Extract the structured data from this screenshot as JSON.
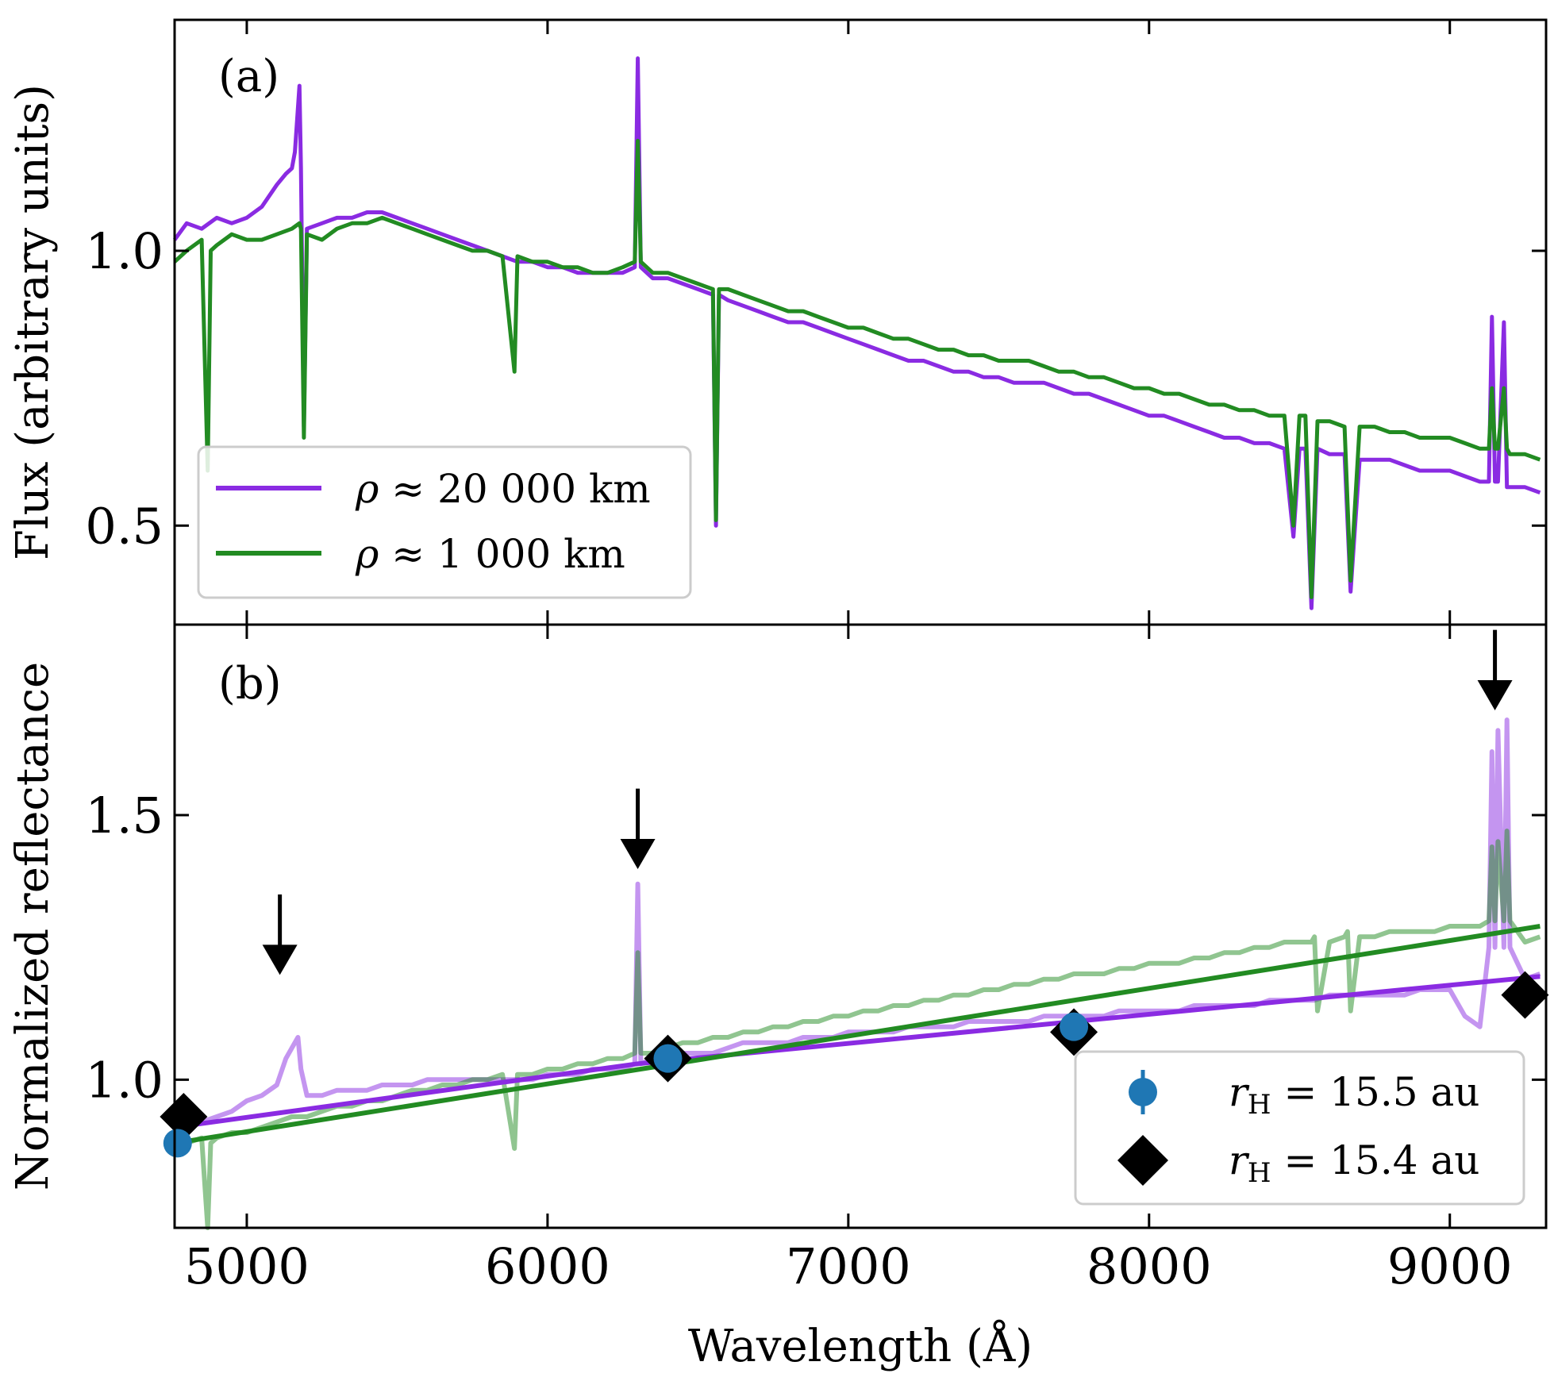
{
  "chart_data": [
    {
      "type": "line",
      "panel_label": "(a)",
      "ylabel": "Flux (arbitrary units)",
      "xlabel": "Wavelength (Å)",
      "xlim": [
        4760,
        9320
      ],
      "ylim": [
        0.32,
        1.42
      ],
      "yticks": [
        0.5,
        1.0
      ],
      "ytick_labels": [
        "0.5",
        "1.0"
      ],
      "xticks": [
        5000,
        6000,
        7000,
        8000,
        9000
      ],
      "colors": {
        "purple": "#8a2be2",
        "green": "#228b22"
      },
      "legend_position": "lower-left",
      "series": [
        {
          "name": "ρ ≈ 20 000 km",
          "legend_rho": "ρ",
          "legend_approx": "≈",
          "legend_value": "20 000 km",
          "color": "#8a2be2",
          "x": [
            4760,
            4800,
            4850,
            4900,
            4950,
            5000,
            5050,
            5100,
            5130,
            5150,
            5160,
            5175,
            5180,
            5190,
            5200,
            5250,
            5300,
            5350,
            5400,
            5450,
            5500,
            5550,
            5600,
            5650,
            5700,
            5750,
            5800,
            5850,
            5900,
            5950,
            6000,
            6050,
            6100,
            6150,
            6200,
            6250,
            6290,
            6300,
            6310,
            6350,
            6400,
            6450,
            6500,
            6550,
            6560,
            6570,
            6600,
            6650,
            6700,
            6750,
            6800,
            6850,
            6900,
            6950,
            7000,
            7050,
            7100,
            7150,
            7200,
            7250,
            7300,
            7350,
            7400,
            7450,
            7500,
            7550,
            7600,
            7650,
            7700,
            7750,
            7800,
            7850,
            7900,
            7950,
            8000,
            8050,
            8100,
            8150,
            8200,
            8250,
            8300,
            8350,
            8400,
            8450,
            8480,
            8500,
            8520,
            8540,
            8560,
            8600,
            8650,
            8670,
            8700,
            8750,
            8800,
            8850,
            8900,
            8950,
            9000,
            9050,
            9100,
            9130,
            9140,
            9150,
            9160,
            9180,
            9190,
            9200,
            9250,
            9300
          ],
          "y": [
            1.02,
            1.05,
            1.04,
            1.06,
            1.05,
            1.06,
            1.08,
            1.12,
            1.14,
            1.15,
            1.18,
            1.3,
            1.15,
            0.68,
            1.04,
            1.05,
            1.06,
            1.06,
            1.07,
            1.07,
            1.06,
            1.05,
            1.04,
            1.03,
            1.02,
            1.01,
            1.0,
            0.99,
            0.98,
            0.98,
            0.97,
            0.97,
            0.96,
            0.96,
            0.96,
            0.96,
            0.97,
            1.35,
            0.97,
            0.95,
            0.95,
            0.94,
            0.93,
            0.92,
            0.5,
            0.92,
            0.91,
            0.9,
            0.89,
            0.88,
            0.87,
            0.87,
            0.86,
            0.85,
            0.84,
            0.83,
            0.82,
            0.81,
            0.8,
            0.8,
            0.79,
            0.78,
            0.78,
            0.77,
            0.77,
            0.76,
            0.76,
            0.76,
            0.75,
            0.74,
            0.74,
            0.73,
            0.72,
            0.71,
            0.7,
            0.7,
            0.69,
            0.68,
            0.67,
            0.66,
            0.66,
            0.65,
            0.65,
            0.64,
            0.48,
            0.64,
            0.64,
            0.35,
            0.64,
            0.63,
            0.63,
            0.38,
            0.62,
            0.62,
            0.62,
            0.61,
            0.6,
            0.6,
            0.6,
            0.59,
            0.58,
            0.58,
            0.88,
            0.58,
            0.58,
            0.87,
            0.57,
            0.57,
            0.57,
            0.56
          ]
        },
        {
          "name": "ρ ≈ 1 000 km",
          "legend_rho": "ρ",
          "legend_approx": "≈",
          "legend_value": "1 000 km",
          "color": "#228b22",
          "x": [
            4760,
            4800,
            4850,
            4870,
            4880,
            4900,
            4950,
            5000,
            5050,
            5100,
            5150,
            5175,
            5180,
            5190,
            5200,
            5250,
            5300,
            5350,
            5400,
            5450,
            5500,
            5550,
            5600,
            5650,
            5700,
            5750,
            5800,
            5850,
            5890,
            5900,
            5950,
            6000,
            6050,
            6100,
            6150,
            6200,
            6250,
            6290,
            6300,
            6310,
            6350,
            6400,
            6450,
            6500,
            6550,
            6560,
            6570,
            6600,
            6650,
            6700,
            6750,
            6800,
            6850,
            6900,
            6950,
            7000,
            7050,
            7100,
            7150,
            7200,
            7250,
            7300,
            7350,
            7400,
            7450,
            7500,
            7550,
            7600,
            7650,
            7700,
            7750,
            7800,
            7850,
            7900,
            7950,
            8000,
            8050,
            8100,
            8150,
            8200,
            8250,
            8300,
            8350,
            8400,
            8450,
            8480,
            8500,
            8520,
            8540,
            8560,
            8600,
            8650,
            8670,
            8700,
            8750,
            8800,
            8850,
            8900,
            8950,
            9000,
            9050,
            9100,
            9130,
            9140,
            9150,
            9160,
            9180,
            9190,
            9200,
            9250,
            9300
          ],
          "y": [
            0.98,
            1.0,
            1.02,
            0.6,
            1.0,
            1.01,
            1.03,
            1.02,
            1.02,
            1.03,
            1.04,
            1.05,
            1.04,
            0.66,
            1.03,
            1.02,
            1.04,
            1.05,
            1.05,
            1.06,
            1.05,
            1.04,
            1.03,
            1.02,
            1.01,
            1.0,
            1.0,
            0.99,
            0.78,
            0.99,
            0.98,
            0.98,
            0.97,
            0.97,
            0.96,
            0.96,
            0.97,
            0.98,
            1.2,
            0.98,
            0.96,
            0.96,
            0.95,
            0.94,
            0.93,
            0.51,
            0.93,
            0.93,
            0.92,
            0.91,
            0.9,
            0.89,
            0.89,
            0.88,
            0.87,
            0.86,
            0.86,
            0.85,
            0.84,
            0.84,
            0.83,
            0.82,
            0.82,
            0.81,
            0.81,
            0.8,
            0.8,
            0.8,
            0.79,
            0.78,
            0.78,
            0.77,
            0.77,
            0.76,
            0.75,
            0.75,
            0.74,
            0.74,
            0.73,
            0.72,
            0.72,
            0.71,
            0.71,
            0.7,
            0.7,
            0.5,
            0.7,
            0.7,
            0.37,
            0.69,
            0.69,
            0.68,
            0.4,
            0.68,
            0.68,
            0.67,
            0.67,
            0.66,
            0.66,
            0.66,
            0.65,
            0.64,
            0.64,
            0.75,
            0.64,
            0.64,
            0.75,
            0.64,
            0.63,
            0.63,
            0.62
          ]
        }
      ]
    },
    {
      "type": "line",
      "panel_label": "(b)",
      "ylabel": "Normalized reflectance",
      "xlabel": "Wavelength (Å)",
      "xlim": [
        4760,
        9320
      ],
      "ylim": [
        0.72,
        1.86
      ],
      "yticks": [
        1.0,
        1.5
      ],
      "ytick_labels": [
        "1.0",
        "1.5"
      ],
      "xticks": [
        5000,
        6000,
        7000,
        8000,
        9000
      ],
      "xtick_labels": [
        "5000",
        "6000",
        "7000",
        "8000",
        "9000"
      ],
      "legend_position": "lower-right",
      "series": [
        {
          "name": "ρ ≈ 20 000 km reflectance",
          "color": "#8a2be2",
          "opacity": 0.5,
          "x": [
            4760,
            4800,
            4850,
            4900,
            4950,
            5000,
            5050,
            5100,
            5130,
            5150,
            5170,
            5180,
            5200,
            5250,
            5300,
            5350,
            5400,
            5450,
            5500,
            5550,
            5600,
            5650,
            5700,
            5750,
            5800,
            5850,
            5900,
            5950,
            6000,
            6050,
            6100,
            6150,
            6200,
            6250,
            6290,
            6300,
            6310,
            6350,
            6400,
            6450,
            6500,
            6550,
            6600,
            6650,
            6700,
            6750,
            6800,
            6850,
            6900,
            6950,
            7000,
            7050,
            7100,
            7150,
            7200,
            7250,
            7300,
            7350,
            7400,
            7450,
            7500,
            7550,
            7600,
            7650,
            7700,
            7750,
            7800,
            7850,
            7900,
            7950,
            8000,
            8050,
            8100,
            8150,
            8200,
            8250,
            8300,
            8350,
            8400,
            8450,
            8500,
            8550,
            8600,
            8650,
            8700,
            8750,
            8800,
            8850,
            8900,
            8950,
            9000,
            9050,
            9100,
            9130,
            9140,
            9150,
            9160,
            9180,
            9190,
            9200,
            9250,
            9300
          ],
          "y": [
            0.9,
            0.91,
            0.92,
            0.93,
            0.94,
            0.96,
            0.97,
            0.99,
            1.04,
            1.06,
            1.08,
            1.02,
            0.97,
            0.97,
            0.98,
            0.98,
            0.98,
            0.99,
            0.99,
            0.99,
            1.0,
            1.0,
            1.0,
            1.0,
            1.0,
            1.0,
            1.0,
            1.0,
            1.01,
            1.01,
            1.01,
            1.02,
            1.02,
            1.02,
            1.03,
            1.37,
            1.03,
            1.04,
            1.04,
            1.05,
            1.05,
            1.05,
            1.06,
            1.07,
            1.07,
            1.07,
            1.07,
            1.08,
            1.08,
            1.08,
            1.09,
            1.09,
            1.09,
            1.09,
            1.1,
            1.1,
            1.1,
            1.1,
            1.11,
            1.11,
            1.11,
            1.11,
            1.11,
            1.12,
            1.12,
            1.12,
            1.12,
            1.12,
            1.13,
            1.13,
            1.13,
            1.13,
            1.13,
            1.14,
            1.14,
            1.14,
            1.14,
            1.14,
            1.15,
            1.15,
            1.15,
            1.15,
            1.16,
            1.16,
            1.16,
            1.16,
            1.16,
            1.16,
            1.17,
            1.17,
            1.17,
            1.12,
            1.1,
            1.25,
            1.62,
            1.25,
            1.66,
            1.25,
            1.68,
            1.25,
            1.19,
            1.2
          ]
        },
        {
          "name": "ρ ≈ 1 000 km reflectance",
          "color": "#228b22",
          "opacity": 0.5,
          "x": [
            4760,
            4800,
            4850,
            4870,
            4880,
            4900,
            4950,
            5000,
            5050,
            5100,
            5150,
            5200,
            5250,
            5300,
            5350,
            5400,
            5450,
            5500,
            5550,
            5600,
            5650,
            5700,
            5750,
            5800,
            5850,
            5890,
            5900,
            5950,
            6000,
            6050,
            6100,
            6150,
            6200,
            6250,
            6290,
            6300,
            6310,
            6350,
            6400,
            6450,
            6500,
            6550,
            6600,
            6650,
            6700,
            6750,
            6800,
            6850,
            6900,
            6950,
            7000,
            7050,
            7100,
            7150,
            7200,
            7250,
            7300,
            7350,
            7400,
            7450,
            7500,
            7550,
            7600,
            7650,
            7700,
            7750,
            7800,
            7850,
            7900,
            7950,
            8000,
            8050,
            8100,
            8150,
            8200,
            8250,
            8300,
            8350,
            8400,
            8450,
            8500,
            8540,
            8550,
            8560,
            8600,
            8650,
            8660,
            8670,
            8700,
            8750,
            8800,
            8850,
            8900,
            8950,
            9000,
            9050,
            9100,
            9130,
            9140,
            9150,
            9160,
            9180,
            9190,
            9200,
            9250,
            9300
          ],
          "y": [
            0.87,
            0.88,
            0.89,
            0.72,
            0.88,
            0.89,
            0.9,
            0.9,
            0.91,
            0.92,
            0.93,
            0.93,
            0.94,
            0.95,
            0.95,
            0.96,
            0.96,
            0.97,
            0.98,
            0.98,
            0.99,
            0.99,
            1.0,
            1.0,
            1.01,
            0.87,
            1.01,
            1.01,
            1.02,
            1.02,
            1.03,
            1.03,
            1.04,
            1.04,
            1.05,
            1.24,
            1.05,
            1.05,
            1.06,
            1.07,
            1.07,
            1.08,
            1.08,
            1.09,
            1.09,
            1.1,
            1.1,
            1.11,
            1.11,
            1.12,
            1.12,
            1.13,
            1.13,
            1.14,
            1.14,
            1.15,
            1.15,
            1.16,
            1.16,
            1.17,
            1.17,
            1.18,
            1.18,
            1.19,
            1.19,
            1.2,
            1.2,
            1.2,
            1.21,
            1.21,
            1.22,
            1.22,
            1.22,
            1.23,
            1.23,
            1.24,
            1.24,
            1.25,
            1.25,
            1.26,
            1.26,
            1.26,
            1.27,
            1.13,
            1.26,
            1.27,
            1.28,
            1.13,
            1.27,
            1.27,
            1.28,
            1.28,
            1.28,
            1.28,
            1.29,
            1.29,
            1.29,
            1.3,
            1.44,
            1.3,
            1.45,
            1.3,
            1.47,
            1.3,
            1.26,
            1.27
          ]
        },
        {
          "name": "purple linear fit",
          "color": "#8a2be2",
          "opacity": 1,
          "x": [
            4760,
            6300,
            9300
          ],
          "y": [
            0.91,
            1.03,
            1.195
          ]
        },
        {
          "name": "green linear fit",
          "color": "#228b22",
          "opacity": 1,
          "x": [
            4760,
            9300
          ],
          "y": [
            0.88,
            1.29
          ]
        }
      ],
      "points": [
        {
          "name": "r_H = 15.5 au",
          "legend_var": "r",
          "legend_sub": "H",
          "legend_rest": " = 15.5 au",
          "marker": "circle",
          "color": "#1f77b4",
          "x": [
            4770,
            6400,
            7750
          ],
          "y": [
            0.88,
            1.04,
            1.1
          ]
        },
        {
          "name": "r_H = 15.4 au",
          "legend_var": "r",
          "legend_sub": "H",
          "legend_rest": " = 15.4 au",
          "marker": "diamond",
          "color": "#000000",
          "x": [
            4790,
            6400,
            7750,
            9250
          ],
          "y": [
            0.93,
            1.04,
            1.09,
            1.16
          ]
        }
      ],
      "annotations": [
        {
          "type": "down-arrow",
          "x": 5110,
          "y_tail": 1.35,
          "y_head": 1.21
        },
        {
          "type": "down-arrow",
          "x": 6300,
          "y_tail": 1.55,
          "y_head": 1.41
        },
        {
          "type": "down-arrow",
          "x": 9150,
          "y_tail": 1.85,
          "y_head": 1.71
        }
      ]
    }
  ]
}
